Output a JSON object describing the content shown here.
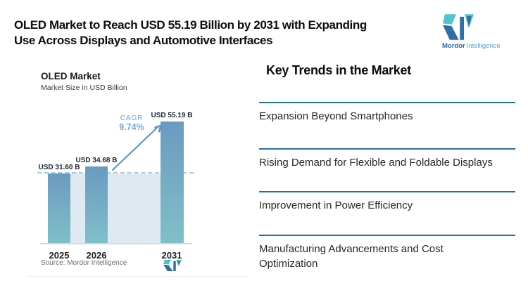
{
  "header": {
    "title_line1": "OLED Market to Reach USD 55.19 Billion by 2031 with Expanding",
    "title_line2": "Use Across Displays and Automotive Interfaces"
  },
  "brand": {
    "name_primary": "Mordor",
    "name_secondary": "Intelligence"
  },
  "chart": {
    "title": "OLED Market",
    "subtitle": "Market Size in USD Billion",
    "cagr_label": "CAGR",
    "cagr_value": "9.74%",
    "source": "Source: Mordor Intelligence"
  },
  "chart_data": {
    "type": "bar",
    "title": "OLED Market",
    "ylabel": "Market Size in USD Billion",
    "categories": [
      "2025",
      "2026",
      "2031"
    ],
    "values": [
      31.6,
      34.68,
      55.19
    ],
    "value_labels": [
      "USD 31.60 B",
      "USD 34.68 B",
      "USD 55.19 B"
    ],
    "ylim": [
      0,
      60
    ],
    "grid": false,
    "annotations": {
      "cagr": "9.74%",
      "reference_dashed_line_at": 31.6
    },
    "bar_gradient": [
      "#6b9ac0",
      "#7fc0c8"
    ]
  },
  "trends": {
    "heading": "Key Trends in the Market",
    "items": [
      "Expansion Beyond Smartphones",
      "Rising Demand for Flexible and Foldable Displays",
      "Improvement in Power Efficiency",
      "Manufacturing Advancements and Cost Optimization"
    ]
  },
  "colors": {
    "accent_divider": "#26719f",
    "arrow_blue": "#5e94c8",
    "cagr_text": "#74a7d6",
    "brand_navy": "#2e6fa9",
    "brand_teal": "#50c4cb",
    "panel_fill": "#dfe9f1",
    "dashed_line": "#aac8de"
  }
}
